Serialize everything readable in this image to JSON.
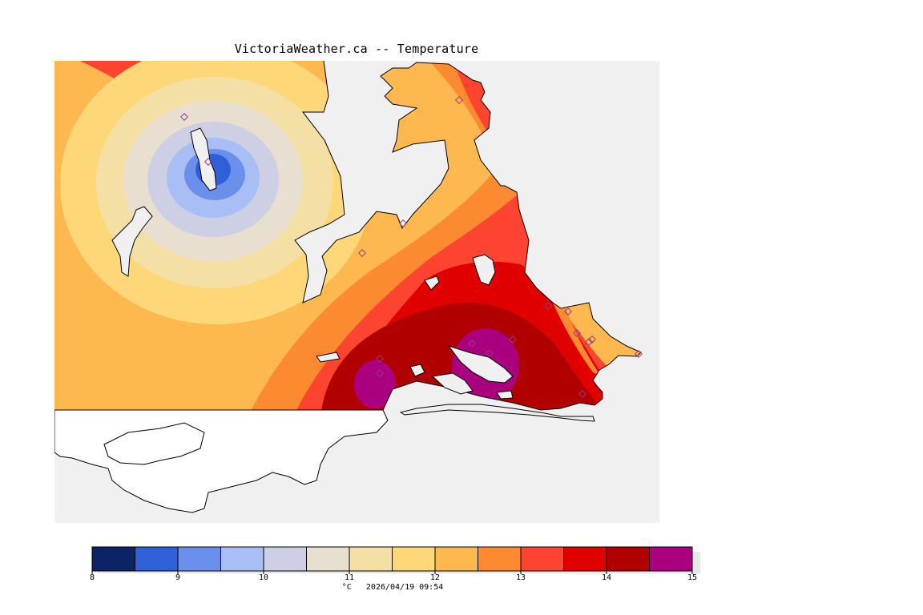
{
  "title": "VictoriaWeather.ca -- Temperature",
  "colors": {
    "land_grey": "#f0f0f0",
    "station_marker": "#9a3a7a",
    "coast_line": "#000000"
  },
  "color_scale": {
    "unit": "°C",
    "timestamp": "2026/04/19 09:54",
    "ticks": [
      "8",
      "9",
      "10",
      "11",
      "12",
      "13",
      "14",
      "15"
    ],
    "bins": [
      {
        "min": 8.0,
        "max": 8.5,
        "color": "#0c2466"
      },
      {
        "min": 8.5,
        "max": 9.0,
        "color": "#3060d8"
      },
      {
        "min": 9.0,
        "max": 9.5,
        "color": "#6a90ec"
      },
      {
        "min": 9.5,
        "max": 10.0,
        "color": "#aabef6"
      },
      {
        "min": 10.0,
        "max": 10.5,
        "color": "#cdd0e4"
      },
      {
        "min": 10.5,
        "max": 11.0,
        "color": "#e8dfd0"
      },
      {
        "min": 11.0,
        "max": 11.5,
        "color": "#f4e0a4"
      },
      {
        "min": 11.5,
        "max": 12.0,
        "color": "#fed878"
      },
      {
        "min": 12.0,
        "max": 12.5,
        "color": "#fdb850"
      },
      {
        "min": 12.5,
        "max": 13.0,
        "color": "#fc8a30"
      },
      {
        "min": 13.0,
        "max": 13.5,
        "color": "#fc4430"
      },
      {
        "min": 13.5,
        "max": 14.0,
        "color": "#e00000"
      },
      {
        "min": 14.0,
        "max": 14.5,
        "color": "#b00000"
      },
      {
        "min": 14.5,
        "max": 15.0,
        "color": "#aa0080"
      }
    ]
  }
}
